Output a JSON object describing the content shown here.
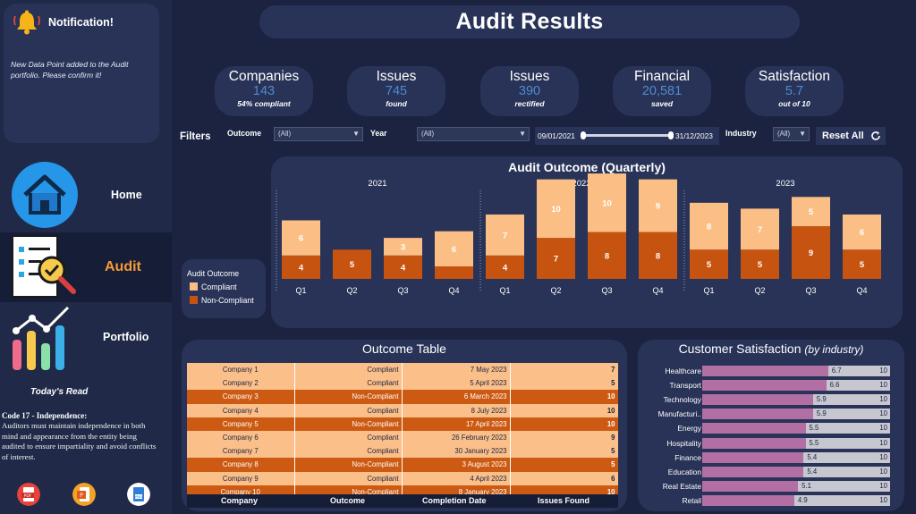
{
  "title": "Audit Results",
  "notification": {
    "title": "Notification!",
    "message": "New Data Point added to the Audit portfolio. Please confirm it!"
  },
  "nav": [
    {
      "label": "Home",
      "icon": "home-icon"
    },
    {
      "label": "Audit",
      "icon": "audit-document-icon",
      "active": true
    },
    {
      "label": "Portfolio",
      "icon": "portfolio-chart-icon"
    }
  ],
  "todays_read": {
    "heading": "Today's Read",
    "title": "Code 17 - Independence:",
    "body": "Auditors must maintain independence in both mind and appearance from the entity being audited to ensure impartiality and avoid conflicts of interest."
  },
  "kpis": [
    {
      "label": "Companies",
      "value": "143",
      "sub": "54% compliant"
    },
    {
      "label": "Issues",
      "value": "745",
      "sub": "found"
    },
    {
      "label": "Issues",
      "value": "390",
      "sub": "rectified"
    },
    {
      "label": "Financial",
      "value": "20,581",
      "sub": "saved"
    },
    {
      "label": "Satisfaction",
      "value": "5.7",
      "sub": "out of 10"
    }
  ],
  "filters": {
    "label": "Filters",
    "outcome": {
      "label": "Outcome",
      "value": "(All)"
    },
    "year": {
      "label": "Year",
      "value": "(All)"
    },
    "date_start": "09/01/2021",
    "date_end": "31/12/2023",
    "industry": {
      "label": "Industry",
      "value": "(All)"
    },
    "reset_label": "Reset All"
  },
  "chart_data": [
    {
      "type": "bar",
      "stacked": true,
      "title": "Audit Outcome (Quarterly)",
      "years": [
        "2021",
        "2022",
        "2023"
      ],
      "categories": [
        "Q1",
        "Q2",
        "Q3",
        "Q4",
        "Q1",
        "Q2",
        "Q3",
        "Q4",
        "Q1",
        "Q2",
        "Q3",
        "Q4"
      ],
      "series": [
        {
          "name": "Non-Compliant",
          "color": "#c75310",
          "values": [
            4,
            5,
            4,
            null,
            4,
            7,
            8,
            8,
            5,
            5,
            9,
            5
          ]
        },
        {
          "name": "Compliant",
          "color": "#fbbf86",
          "values": [
            6,
            null,
            3,
            6,
            7,
            10,
            10,
            9,
            8,
            7,
            5,
            6
          ]
        }
      ],
      "legend": {
        "title": "Audit Outcome",
        "placement": "left"
      }
    },
    {
      "type": "bar",
      "orientation": "horizontal",
      "title": "Customer Satisfaction",
      "subtitle": "(by industry)",
      "xlim": [
        0,
        10
      ],
      "max_label": "10",
      "categories": [
        "Healthcare",
        "Transport",
        "Technology",
        "Manufacturi..",
        "Energy",
        "Hospitality",
        "Finance",
        "Education",
        "Real Estate",
        "Retail"
      ],
      "values": [
        6.7,
        6.6,
        5.9,
        5.9,
        5.5,
        5.5,
        5.4,
        5.4,
        5.1,
        4.9
      ],
      "fill_color": "#b26fa3",
      "track_color": "#c7c7cf"
    }
  ],
  "outcome_table": {
    "title": "Outcome Table",
    "columns": [
      "Company",
      "Outcome",
      "Completion Date",
      "Issues Found"
    ],
    "rows": [
      [
        "Company 1",
        "Compliant",
        "7 May 2023",
        "7"
      ],
      [
        "Company 2",
        "Compliant",
        "5 April 2023",
        "5"
      ],
      [
        "Company 3",
        "Non-Compliant",
        "6 March 2023",
        "10"
      ],
      [
        "Company 4",
        "Compliant",
        "8 July 2023",
        "10"
      ],
      [
        "Company 5",
        "Non-Compliant",
        "17 April 2023",
        "10"
      ],
      [
        "Company 6",
        "Compliant",
        "26 February 2023",
        "9"
      ],
      [
        "Company 7",
        "Compliant",
        "30 January 2023",
        "5"
      ],
      [
        "Company 8",
        "Non-Compliant",
        "3 August 2023",
        "5"
      ],
      [
        "Company 9",
        "Compliant",
        "4 April 2023",
        "6"
      ],
      [
        "Company 10",
        "Non-Compliant",
        "8 January 2023",
        "10"
      ]
    ]
  },
  "export_icons": [
    "pdf-icon",
    "powerpoint-icon",
    "png-icon"
  ]
}
